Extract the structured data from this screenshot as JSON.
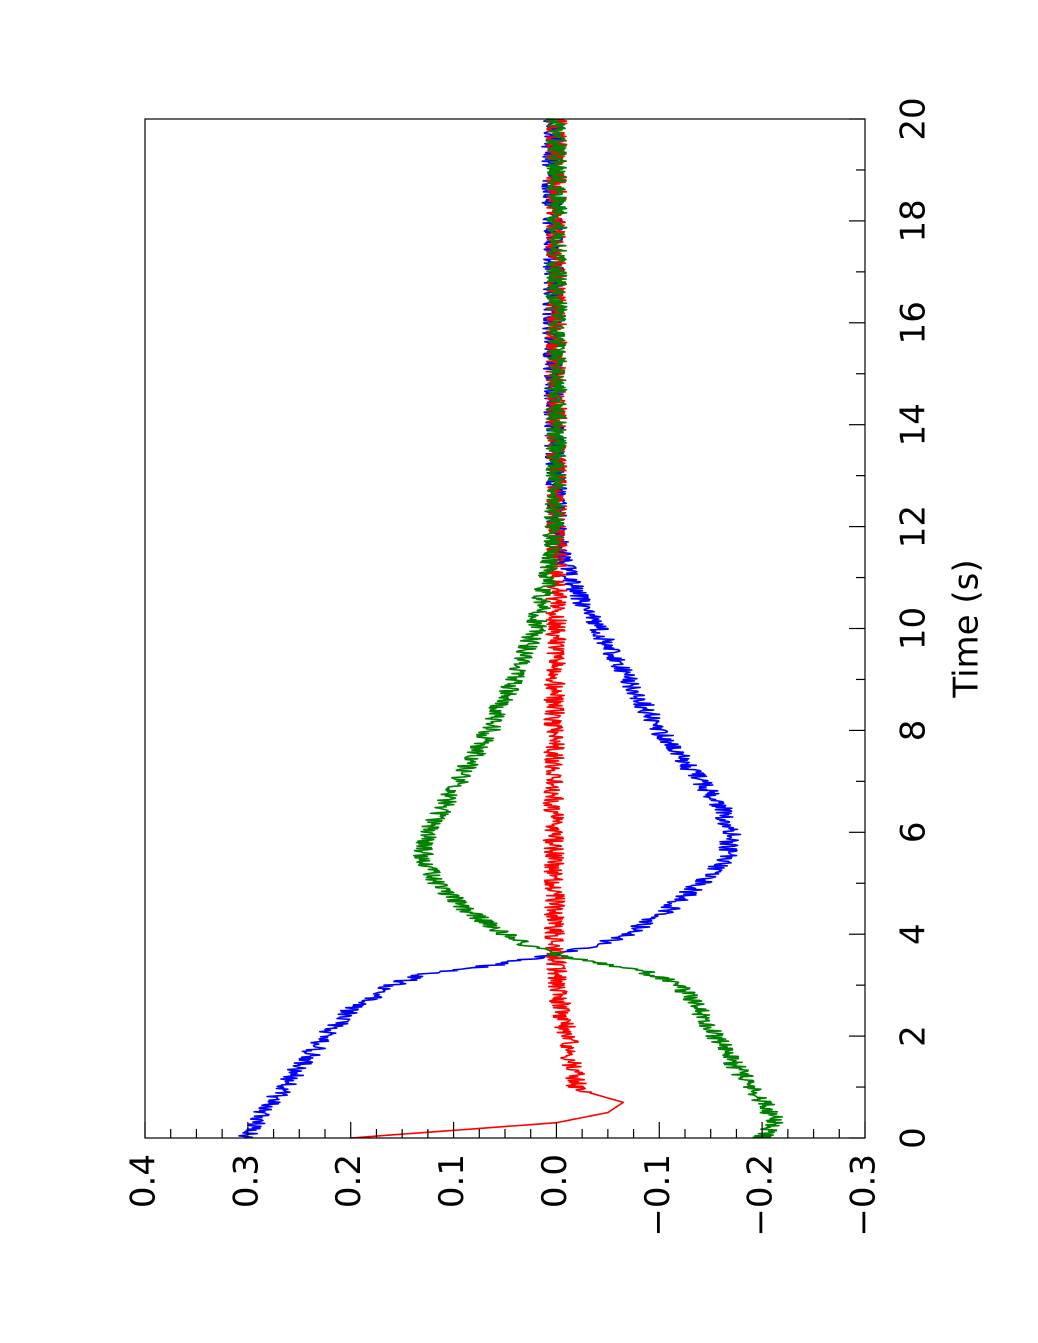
{
  "chart_data": {
    "type": "line",
    "orientation": "rotated 90 degrees counter-clockwise (time axis runs vertically, bottom to top)",
    "title": "",
    "xlabel": "Time (s)",
    "ylabel": "",
    "xlim": [
      0,
      20
    ],
    "ylim": [
      -0.3,
      0.4
    ],
    "x_ticks": [
      "0",
      "2",
      "4",
      "6",
      "8",
      "10",
      "12",
      "14",
      "16",
      "18",
      "20"
    ],
    "y_ticks": [
      "0.4",
      "0.3",
      "0.2",
      "0.1",
      "0.0",
      "−0.1",
      "−0.2",
      "−0.3"
    ],
    "y_tick_values": [
      0.4,
      0.3,
      0.2,
      0.1,
      0.0,
      -0.1,
      -0.2,
      -0.3
    ],
    "grid": false,
    "legend": "none",
    "noise_amplitude": 0.01,
    "series": [
      {
        "color": "#0000ff",
        "points": [
          [
            0,
            0.3
          ],
          [
            0.5,
            0.285
          ],
          [
            1,
            0.265
          ],
          [
            1.5,
            0.245
          ],
          [
            2,
            0.225
          ],
          [
            2.5,
            0.2
          ],
          [
            3,
            0.16
          ],
          [
            3.2,
            0.13
          ],
          [
            3.4,
            0.06
          ],
          [
            3.6,
            0.0
          ],
          [
            3.8,
            -0.04
          ],
          [
            4,
            -0.07
          ],
          [
            4.5,
            -0.11
          ],
          [
            5,
            -0.14
          ],
          [
            5.5,
            -0.165
          ],
          [
            6,
            -0.17
          ],
          [
            6.5,
            -0.16
          ],
          [
            7,
            -0.14
          ],
          [
            7.5,
            -0.12
          ],
          [
            8,
            -0.1
          ],
          [
            8.5,
            -0.085
          ],
          [
            9,
            -0.07
          ],
          [
            9.5,
            -0.055
          ],
          [
            10,
            -0.04
          ],
          [
            10.5,
            -0.025
          ],
          [
            11,
            -0.012
          ],
          [
            11.5,
            -0.004
          ],
          [
            12,
            0.0
          ],
          [
            13,
            0.0
          ],
          [
            14,
            0.003
          ],
          [
            15,
            0.003
          ],
          [
            16,
            0.004
          ],
          [
            17,
            0.003
          ],
          [
            18,
            0.004
          ],
          [
            19,
            0.004
          ],
          [
            20,
            0.004
          ]
        ]
      },
      {
        "color": "#ff0000",
        "points": [
          [
            0,
            0.2
          ],
          [
            0.15,
            0.1
          ],
          [
            0.3,
            0.0
          ],
          [
            0.5,
            -0.05
          ],
          [
            0.7,
            -0.065
          ],
          [
            0.9,
            -0.03
          ],
          [
            1,
            -0.02
          ],
          [
            1.5,
            -0.015
          ],
          [
            2,
            -0.01
          ],
          [
            2.5,
            -0.005
          ],
          [
            3,
            0.0
          ],
          [
            3.6,
            0.0
          ],
          [
            4,
            0.002
          ],
          [
            5,
            0.002
          ],
          [
            6,
            0.003
          ],
          [
            7,
            0.003
          ],
          [
            8,
            0.002
          ],
          [
            9,
            0.002
          ],
          [
            10,
            0.0
          ],
          [
            11,
            0.0
          ],
          [
            12,
            0.0
          ],
          [
            14,
            0.0
          ],
          [
            16,
            0.0
          ],
          [
            18,
            0.0
          ],
          [
            20,
            0.0
          ]
        ]
      },
      {
        "color": "#008000",
        "points": [
          [
            0,
            -0.2
          ],
          [
            0.3,
            -0.215
          ],
          [
            0.6,
            -0.205
          ],
          [
            1,
            -0.19
          ],
          [
            1.5,
            -0.17
          ],
          [
            2,
            -0.155
          ],
          [
            2.5,
            -0.14
          ],
          [
            3,
            -0.12
          ],
          [
            3.3,
            -0.08
          ],
          [
            3.6,
            0.0
          ],
          [
            3.8,
            0.03
          ],
          [
            4,
            0.05
          ],
          [
            4.5,
            0.09
          ],
          [
            5,
            0.115
          ],
          [
            5.5,
            0.13
          ],
          [
            6,
            0.125
          ],
          [
            6.5,
            0.11
          ],
          [
            7,
            0.095
          ],
          [
            7.5,
            0.08
          ],
          [
            8,
            0.065
          ],
          [
            8.5,
            0.055
          ],
          [
            9,
            0.04
          ],
          [
            9.5,
            0.03
          ],
          [
            10,
            0.02
          ],
          [
            10.5,
            0.015
          ],
          [
            11,
            0.008
          ],
          [
            12,
            0.002
          ],
          [
            13,
            0.0
          ],
          [
            14,
            0.0
          ],
          [
            15,
            0.0
          ],
          [
            16,
            0.0
          ],
          [
            17,
            0.0
          ],
          [
            18,
            0.0
          ],
          [
            19,
            0.0
          ],
          [
            20,
            0.0
          ]
        ]
      }
    ]
  }
}
